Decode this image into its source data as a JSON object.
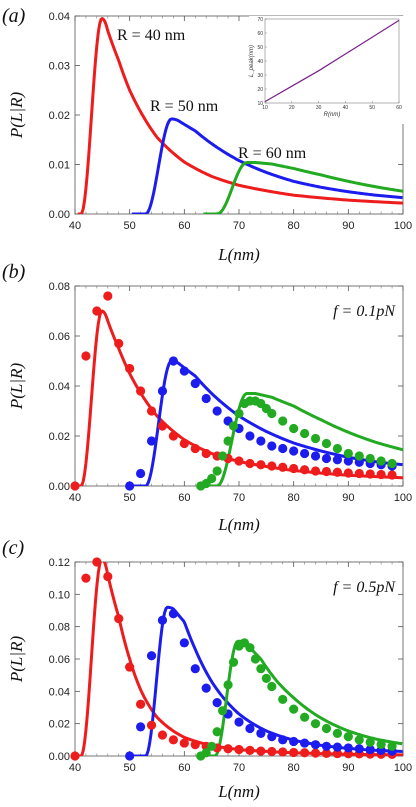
{
  "chart_data": [
    {
      "panel": "(a)",
      "type": "line",
      "xlabel": "L(nm)",
      "ylabel": "P(L|R)",
      "xlim": [
        40,
        100
      ],
      "ylim": [
        0,
        0.04
      ],
      "xticks": [
        "40",
        "50",
        "60",
        "70",
        "80",
        "90",
        "100"
      ],
      "yticks": [
        "0.00",
        "0.01",
        "0.02",
        "0.03",
        "0.04"
      ],
      "grid": false,
      "colors": {
        "R40": "#ee1c1c",
        "R50": "#1c1cee",
        "R60": "#22aa22"
      },
      "annotations": [
        "R = 40 nm",
        "R = 50 nm",
        "R = 60 nm"
      ],
      "series": [
        {
          "key": "R40",
          "name": "R = 40 nm",
          "curve": {
            "x0": 41.1,
            "sigma": 2.4,
            "peak": 0.0395,
            "tail": [
              [
                46,
                0.037
              ],
              [
                48,
                0.031
              ],
              [
                50,
                0.025
              ],
              [
                55,
                0.0155
              ],
              [
                60,
                0.0105
              ],
              [
                65,
                0.0076
              ],
              [
                70,
                0.0058
              ],
              [
                80,
                0.0038
              ],
              [
                90,
                0.0028
              ],
              [
                100,
                0.0022
              ]
            ]
          }
        },
        {
          "key": "R50",
          "name": "R = 50 nm",
          "curve": {
            "x0": 52.9,
            "sigma": 2.5,
            "peak": 0.0192,
            "tail": [
              [
                59,
                0.0188
              ],
              [
                62,
                0.0168
              ],
              [
                65,
                0.0142
              ],
              [
                70,
                0.0108
              ],
              [
                75,
                0.0084
              ],
              [
                80,
                0.0066
              ],
              [
                85,
                0.0054
              ],
              [
                90,
                0.0045
              ],
              [
                95,
                0.0038
              ],
              [
                100,
                0.0033
              ]
            ]
          }
        },
        {
          "key": "R60",
          "name": "R = 60 nm",
          "curve": {
            "x0": 66.0,
            "sigma": 3.0,
            "peak": 0.0104,
            "tail": [
              [
                73,
                0.0104
              ],
              [
                76,
                0.0101
              ],
              [
                80,
                0.0092
              ],
              [
                85,
                0.0079
              ],
              [
                90,
                0.0066
              ],
              [
                95,
                0.0055
              ],
              [
                100,
                0.0046
              ]
            ]
          }
        }
      ],
      "inset": {
        "type": "line",
        "xlabel": "R(nm)",
        "ylabel": "L_peak(nm)",
        "xlim": [
          10,
          60
        ],
        "ylim": [
          10,
          70
        ],
        "xticks": [
          "10",
          "20",
          "30",
          "40",
          "50",
          "60"
        ],
        "yticks": [
          "10",
          "20",
          "30",
          "40",
          "50",
          "60",
          "70"
        ],
        "color": "#7a1f8a",
        "x": [
          10,
          20,
          30,
          40,
          50,
          60
        ],
        "y": [
          11,
          22,
          33,
          45,
          57,
          69
        ]
      }
    },
    {
      "panel": "(b)",
      "type": "scatter",
      "xlabel": "L(nm)",
      "ylabel": "P(L|R)",
      "annotation": "f = 0.1pN",
      "xlim": [
        40,
        100
      ],
      "ylim": [
        0,
        0.08
      ],
      "xticks": [
        "40",
        "50",
        "60",
        "70",
        "80",
        "90",
        "100"
      ],
      "yticks": [
        "0.00",
        "0.02",
        "0.04",
        "0.06",
        "0.08"
      ],
      "grid": false,
      "series": [
        {
          "key": "R40",
          "curve": {
            "x0": 41.1,
            "sigma": 2.4,
            "peak": 0.07,
            "tail": [
              [
                46,
                0.066
              ],
              [
                48,
                0.055
              ],
              [
                50,
                0.045
              ],
              [
                55,
                0.028
              ],
              [
                60,
                0.0185
              ],
              [
                65,
                0.013
              ],
              [
                70,
                0.0098
              ],
              [
                80,
                0.0062
              ],
              [
                90,
                0.0043
              ],
              [
                100,
                0.0033
              ]
            ]
          },
          "points": {
            "x": [
              40,
              42,
              44,
              46,
              48,
              50,
              52,
              54,
              56,
              58,
              60,
              62,
              64,
              66,
              68,
              70,
              72,
              74,
              76,
              78,
              80,
              82,
              84,
              86,
              88,
              90,
              92,
              94,
              96,
              98
            ],
            "y": [
              0.0,
              0.052,
              0.07,
              0.076,
              0.057,
              0.047,
              0.038,
              0.03,
              0.024,
              0.02,
              0.017,
              0.015,
              0.013,
              0.012,
              0.011,
              0.01,
              0.009,
              0.0085,
              0.008,
              0.0075,
              0.007,
              0.0065,
              0.006,
              0.0058,
              0.0055,
              0.0052,
              0.005,
              0.0048,
              0.0046,
              0.0044
            ]
          }
        },
        {
          "key": "R50",
          "curve": {
            "x0": 52.9,
            "sigma": 2.5,
            "peak": 0.05,
            "tail": [
              [
                59,
                0.049
              ],
              [
                62,
                0.044
              ],
              [
                65,
                0.037
              ],
              [
                70,
                0.028
              ],
              [
                75,
                0.0218
              ],
              [
                80,
                0.0172
              ],
              [
                85,
                0.014
              ],
              [
                90,
                0.0115
              ],
              [
                95,
                0.0097
              ],
              [
                100,
                0.0085
              ]
            ]
          },
          "points": {
            "x": [
              50,
              52,
              54,
              56,
              58,
              60,
              62,
              64,
              66,
              68,
              70,
              72,
              74,
              76,
              78,
              80,
              82,
              84,
              86,
              88,
              90,
              92,
              94,
              96,
              98
            ],
            "y": [
              0.0,
              0.005,
              0.018,
              0.038,
              0.05,
              0.046,
              0.041,
              0.035,
              0.03,
              0.026,
              0.023,
              0.02,
              0.018,
              0.016,
              0.015,
              0.014,
              0.013,
              0.012,
              0.011,
              0.0105,
              0.01,
              0.0095,
              0.009,
              0.0085,
              0.008
            ]
          }
        },
        {
          "key": "R60",
          "curve": {
            "x0": 66.0,
            "sigma": 3.0,
            "peak": 0.037,
            "tail": [
              [
                73,
                0.037
              ],
              [
                76,
                0.0355
              ],
              [
                80,
                0.032
              ],
              [
                85,
                0.0265
              ],
              [
                90,
                0.0215
              ],
              [
                95,
                0.0175
              ],
              [
                100,
                0.0145
              ]
            ]
          },
          "points": {
            "x": [
              63,
              64,
              65,
              66,
              67,
              68,
              69,
              70,
              71,
              72,
              73,
              74,
              75,
              76,
              78,
              80,
              82,
              84,
              86,
              88,
              90,
              92,
              94,
              96,
              98
            ],
            "y": [
              0.0,
              0.001,
              0.003,
              0.006,
              0.012,
              0.018,
              0.024,
              0.029,
              0.033,
              0.034,
              0.034,
              0.033,
              0.031,
              0.029,
              0.026,
              0.023,
              0.021,
              0.019,
              0.017,
              0.015,
              0.013,
              0.012,
              0.011,
              0.01,
              0.009
            ]
          }
        }
      ]
    },
    {
      "panel": "(c)",
      "type": "scatter",
      "xlabel": "L(nm)",
      "ylabel": "P(L|R)",
      "annotation": "f = 0.5pN",
      "xlim": [
        40,
        100
      ],
      "ylim": [
        0,
        0.12
      ],
      "xticks": [
        "40",
        "50",
        "60",
        "70",
        "80",
        "90",
        "100"
      ],
      "yticks": [
        "0.00",
        "0.02",
        "0.04",
        "0.06",
        "0.08",
        "0.10",
        "0.12"
      ],
      "grid": false,
      "series": [
        {
          "key": "R40",
          "curve": {
            "x0": 41.1,
            "sigma": 2.3,
            "peak": 0.122,
            "tail": [
              [
                46,
                0.112
              ],
              [
                48,
                0.086
              ],
              [
                50,
                0.06
              ],
              [
                52,
                0.041
              ],
              [
                55,
                0.024
              ],
              [
                60,
                0.0115
              ],
              [
                65,
                0.0065
              ],
              [
                70,
                0.004
              ],
              [
                80,
                0.002
              ],
              [
                90,
                0.0011
              ],
              [
                100,
                0.0007
              ]
            ]
          },
          "points": {
            "x": [
              40,
              42,
              44,
              46,
              48,
              50,
              52,
              54,
              56,
              58,
              60,
              62,
              64,
              66,
              68,
              70,
              72,
              74,
              76,
              78,
              80,
              82,
              84,
              86,
              88,
              90,
              92,
              94,
              96,
              98
            ],
            "y": [
              0.0,
              0.11,
              0.12,
              0.111,
              0.085,
              0.055,
              0.032,
              0.019,
              0.013,
              0.01,
              0.008,
              0.007,
              0.006,
              0.005,
              0.0045,
              0.004,
              0.0035,
              0.003,
              0.0028,
              0.0025,
              0.0022,
              0.002,
              0.0018,
              0.0016,
              0.0015,
              0.0014,
              0.0013,
              0.0012,
              0.0011,
              0.001
            ]
          }
        },
        {
          "key": "R50",
          "curve": {
            "x0": 52.9,
            "sigma": 2.5,
            "peak": 0.092,
            "tail": [
              [
                58,
                0.091
              ],
              [
                60,
                0.083
              ],
              [
                62,
                0.066
              ],
              [
                65,
                0.046
              ],
              [
                70,
                0.026
              ],
              [
                75,
                0.0155
              ],
              [
                80,
                0.0098
              ],
              [
                85,
                0.0066
              ],
              [
                90,
                0.0047
              ],
              [
                95,
                0.0035
              ],
              [
                100,
                0.0028
              ]
            ]
          },
          "points": {
            "x": [
              50,
              52,
              54,
              56,
              58,
              60,
              62,
              64,
              66,
              68,
              70,
              72,
              74,
              76,
              78,
              80,
              82,
              84,
              86,
              88,
              90,
              92,
              94,
              96,
              98
            ],
            "y": [
              0.0,
              0.018,
              0.062,
              0.084,
              0.088,
              0.07,
              0.054,
              0.042,
              0.033,
              0.026,
              0.021,
              0.017,
              0.014,
              0.012,
              0.01,
              0.009,
              0.008,
              0.007,
              0.006,
              0.0055,
              0.005,
              0.0045,
              0.004,
              0.0035,
              0.003
            ]
          }
        },
        {
          "key": "R60",
          "curve": {
            "x0": 65.6,
            "sigma": 2.7,
            "peak": 0.071,
            "tail": [
              [
                71,
                0.071
              ],
              [
                74,
                0.06
              ],
              [
                77,
                0.046
              ],
              [
                80,
                0.036
              ],
              [
                85,
                0.0235
              ],
              [
                90,
                0.0155
              ],
              [
                95,
                0.0105
              ],
              [
                100,
                0.0075
              ]
            ]
          },
          "points": {
            "x": [
              63,
              64,
              65,
              66,
              67,
              68,
              69,
              70,
              71,
              72,
              73,
              74,
              75,
              76,
              78,
              80,
              82,
              84,
              86,
              88,
              90,
              92,
              94,
              96,
              98
            ],
            "y": [
              0.0,
              0.002,
              0.006,
              0.015,
              0.028,
              0.044,
              0.058,
              0.068,
              0.07,
              0.067,
              0.06,
              0.054,
              0.048,
              0.043,
              0.035,
              0.029,
              0.024,
              0.02,
              0.017,
              0.014,
              0.012,
              0.01,
              0.0085,
              0.0072,
              0.006
            ]
          }
        }
      ]
    }
  ]
}
